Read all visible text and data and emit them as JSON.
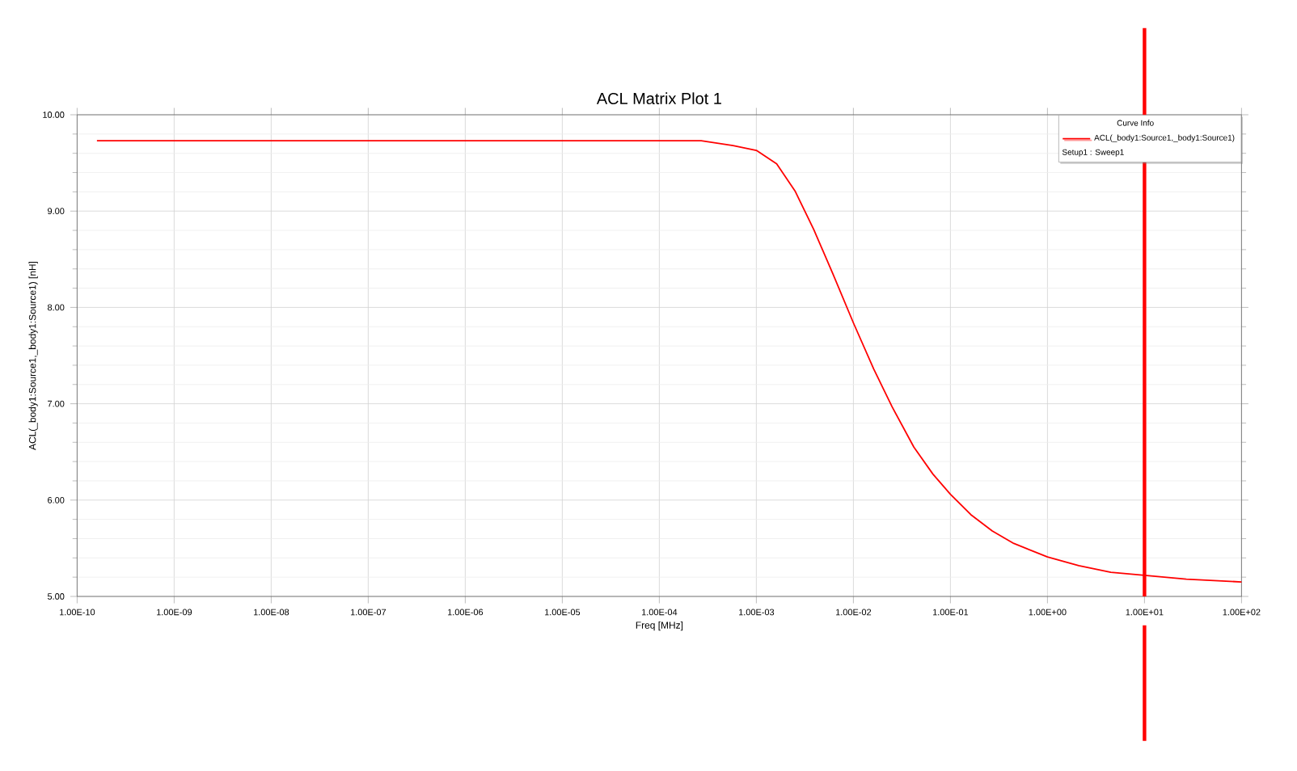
{
  "chart_data": {
    "type": "line",
    "title": "ACL Matrix Plot 1",
    "xlabel": "Freq [MHz]",
    "ylabel": "ACL(_body1:Source1,_body1:Source1) [nH]",
    "legend_title": "Curve Info",
    "annotations": [
      "Setup1 : Sweep1"
    ],
    "log": "x",
    "grid": true,
    "legend": "top right",
    "marker": "none",
    "line_style": "solid",
    "xlim": [
      1e-10,
      100
    ],
    "ylim": [
      5,
      10
    ],
    "xticks": [
      {
        "value": 1e-10,
        "label": "1.00E-10"
      },
      {
        "value": 1e-09,
        "label": "1.00E-09"
      },
      {
        "value": 1e-08,
        "label": "1.00E-08"
      },
      {
        "value": 1e-07,
        "label": "1.00E-07"
      },
      {
        "value": 1e-06,
        "label": "1.00E-06"
      },
      {
        "value": 1e-05,
        "label": "1.00E-05"
      },
      {
        "value": 0.0001,
        "label": "1.00E-04"
      },
      {
        "value": 0.001,
        "label": "1.00E-03"
      },
      {
        "value": 0.01,
        "label": "1.00E-02"
      },
      {
        "value": 0.1,
        "label": "1.00E-01"
      },
      {
        "value": 1,
        "label": "1.00E+00"
      },
      {
        "value": 10,
        "label": "1.00E+01"
      },
      {
        "value": 100,
        "label": "1.00E+02"
      }
    ],
    "yticks": [
      {
        "value": 5,
        "label": "5.00"
      },
      {
        "value": 6,
        "label": "6.00"
      },
      {
        "value": 7,
        "label": "7.00"
      },
      {
        "value": 8,
        "label": "8.00"
      },
      {
        "value": 9,
        "label": "9.00"
      },
      {
        "value": 10,
        "label": "10.00"
      }
    ],
    "x": [
      1.6e-10,
      1e-05,
      7.4e-05,
      0.00027,
      0.000575,
      0.001,
      0.00162,
      0.0025,
      0.0039,
      0.0062,
      0.01,
      0.0162,
      0.025,
      0.042,
      0.066,
      0.1,
      0.162,
      0.27,
      0.45,
      1,
      2.1,
      4.5,
      10,
      27,
      100
    ],
    "series": [
      {
        "name": "ACL(_body1:Source1,_body1:Source1)",
        "color": "#ff0000",
        "values": [
          9.73,
          9.73,
          9.73,
          9.73,
          9.68,
          9.63,
          9.49,
          9.21,
          8.81,
          8.34,
          7.84,
          7.36,
          6.97,
          6.55,
          6.27,
          6.06,
          5.85,
          5.68,
          5.55,
          5.41,
          5.32,
          5.25,
          5.22,
          5.18,
          5.15
        ]
      }
    ],
    "ref_lines": [
      {
        "axis": "x",
        "value": 10,
        "color": "#ff0000"
      }
    ]
  }
}
